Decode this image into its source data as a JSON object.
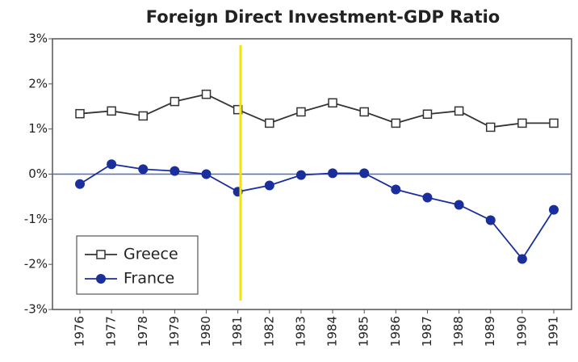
{
  "chart_data": {
    "type": "line",
    "title": "Foreign Direct Investment-GDP Ratio",
    "categories": [
      "1976",
      "1977",
      "1978",
      "1979",
      "1980",
      "1981",
      "1982",
      "1983",
      "1984",
      "1985",
      "1986",
      "1987",
      "1988",
      "1989",
      "1990",
      "1991"
    ],
    "series": [
      {
        "name": "Greece",
        "color": "#333333",
        "marker": "open-square",
        "values": [
          1.34,
          1.4,
          1.29,
          1.61,
          1.77,
          1.43,
          1.13,
          1.38,
          1.58,
          1.38,
          1.13,
          1.33,
          1.4,
          1.04,
          1.13,
          1.13
        ]
      },
      {
        "name": "France",
        "color": "#1a2f9c",
        "marker": "filled-circle",
        "values": [
          -0.22,
          0.22,
          0.11,
          0.07,
          0,
          -0.39,
          -0.25,
          -0.02,
          0.02,
          0.02,
          -0.34,
          -0.52,
          -0.68,
          -1.02,
          -1.88,
          -0.79
        ]
      }
    ],
    "ylim": [
      -3,
      3
    ],
    "yticks": [
      {
        "value": -3,
        "label": "-3%"
      },
      {
        "value": -2,
        "label": "-2%"
      },
      {
        "value": -1,
        "label": "-1%"
      },
      {
        "value": 0,
        "label": "0%"
      },
      {
        "value": 1,
        "label": "1%"
      },
      {
        "value": 2,
        "label": "2%"
      },
      {
        "value": 3,
        "label": "3%"
      }
    ],
    "legend": "lower-left"
  }
}
